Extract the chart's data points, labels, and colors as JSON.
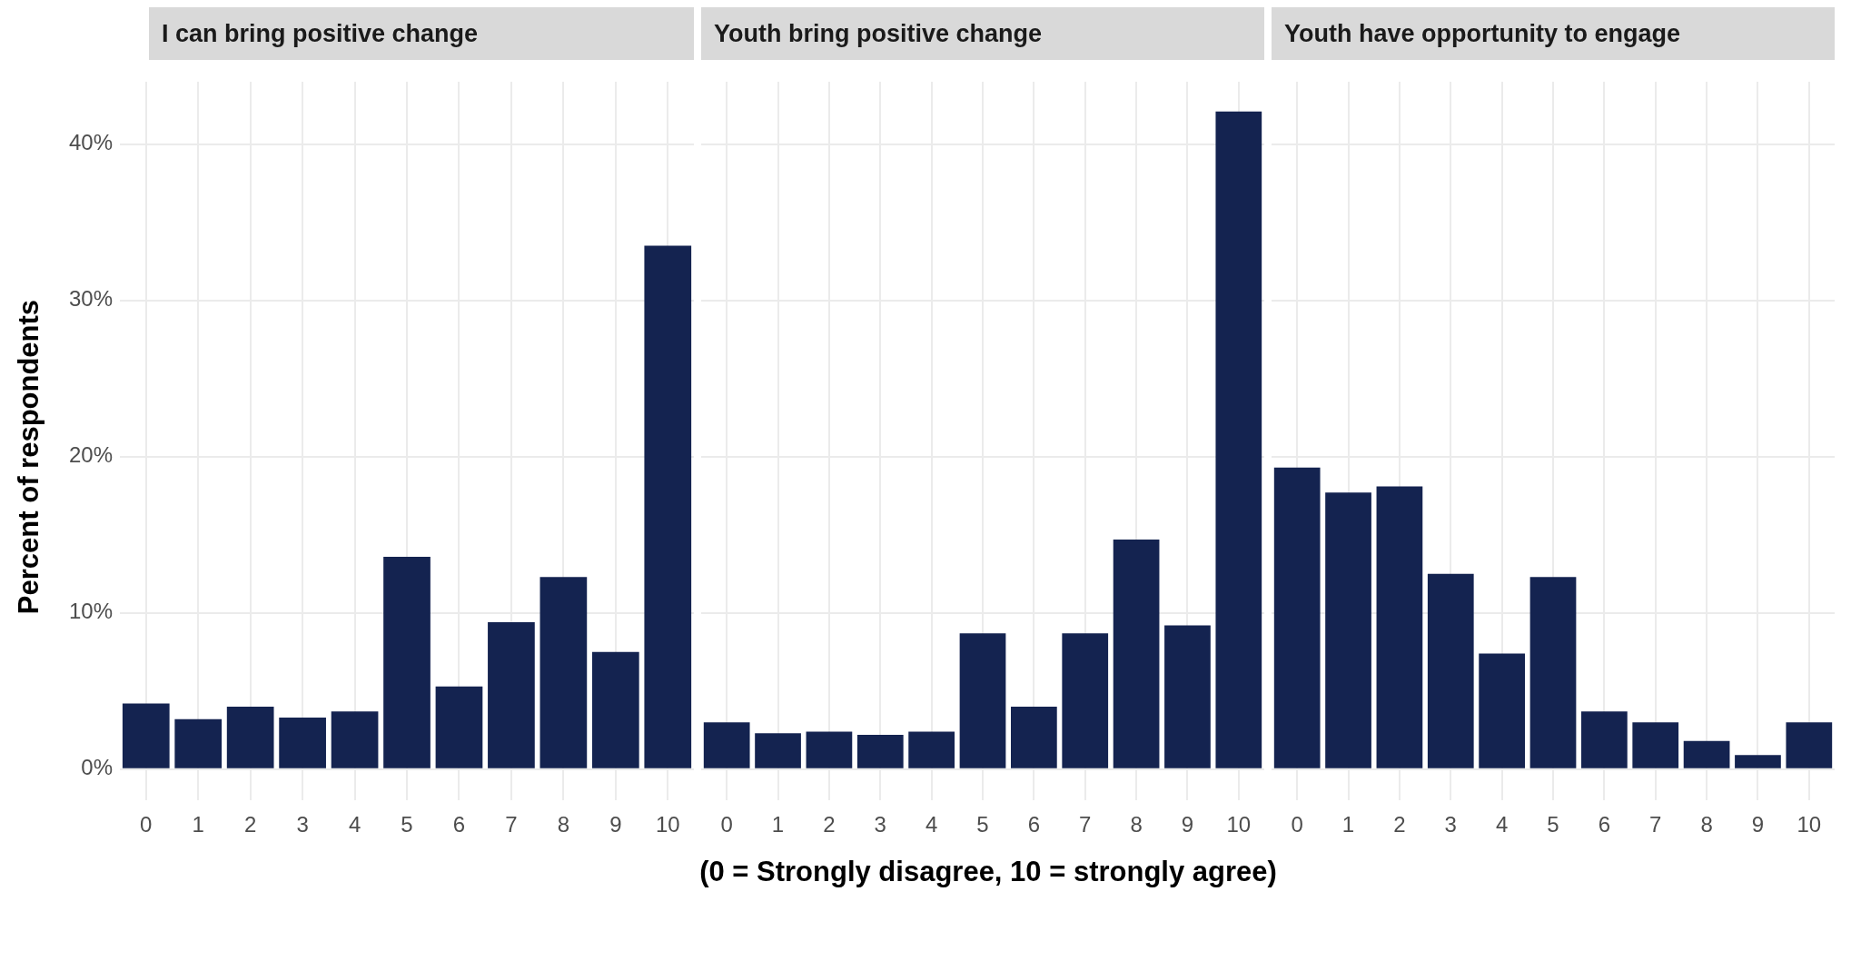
{
  "chart_data": [
    {
      "type": "bar",
      "title": "I can bring positive change",
      "ylabel": "Percent of respondents",
      "categories": [
        "0",
        "1",
        "2",
        "3",
        "4",
        "5",
        "6",
        "7",
        "8",
        "9",
        "10"
      ],
      "values": [
        4.2,
        3.2,
        4.0,
        3.3,
        3.7,
        13.6,
        5.3,
        9.4,
        12.3,
        7.5,
        33.5
      ],
      "color": "#142350",
      "ylim": [
        -2,
        44
      ],
      "yticks": [
        {
          "value": 0,
          "label": "0%"
        },
        {
          "value": 10,
          "label": "10%"
        },
        {
          "value": 20,
          "label": "20%"
        },
        {
          "value": 30,
          "label": "30%"
        },
        {
          "value": 40,
          "label": "40%"
        }
      ],
      "grid": true,
      "legend": false
    },
    {
      "type": "bar",
      "title": "Youth bring positive change",
      "xlabel": "(0 = Strongly disagree, 10 = strongly agree)",
      "categories": [
        "0",
        "1",
        "2",
        "3",
        "4",
        "5",
        "6",
        "7",
        "8",
        "9",
        "10"
      ],
      "values": [
        3.0,
        2.3,
        2.4,
        2.2,
        2.4,
        8.7,
        4.0,
        8.7,
        14.7,
        9.2,
        42.1
      ],
      "color": "#142350",
      "ylim": [
        -2,
        44
      ],
      "yticks": [
        {
          "value": 0,
          "label": null
        },
        {
          "value": 10,
          "label": null
        },
        {
          "value": 20,
          "label": null
        },
        {
          "value": 30,
          "label": null
        },
        {
          "value": 40,
          "label": null
        }
      ],
      "grid": true,
      "legend": false,
      "tick_labels": "x"
    },
    {
      "type": "bar",
      "title": "Youth have opportunity to engage",
      "categories": [
        "0",
        "1",
        "2",
        "3",
        "4",
        "5",
        "6",
        "7",
        "8",
        "9",
        "10"
      ],
      "values": [
        19.3,
        17.7,
        18.1,
        12.5,
        7.4,
        12.3,
        3.7,
        3.0,
        1.8,
        0.9,
        3.0
      ],
      "color": "#142350",
      "ylim": [
        -2,
        44
      ],
      "yticks": [
        {
          "value": 0,
          "label": null
        },
        {
          "value": 10,
          "label": null
        },
        {
          "value": 20,
          "label": null
        },
        {
          "value": 30,
          "label": null
        },
        {
          "value": 40,
          "label": null
        }
      ],
      "grid": true,
      "legend": false,
      "tick_labels": "x"
    }
  ]
}
